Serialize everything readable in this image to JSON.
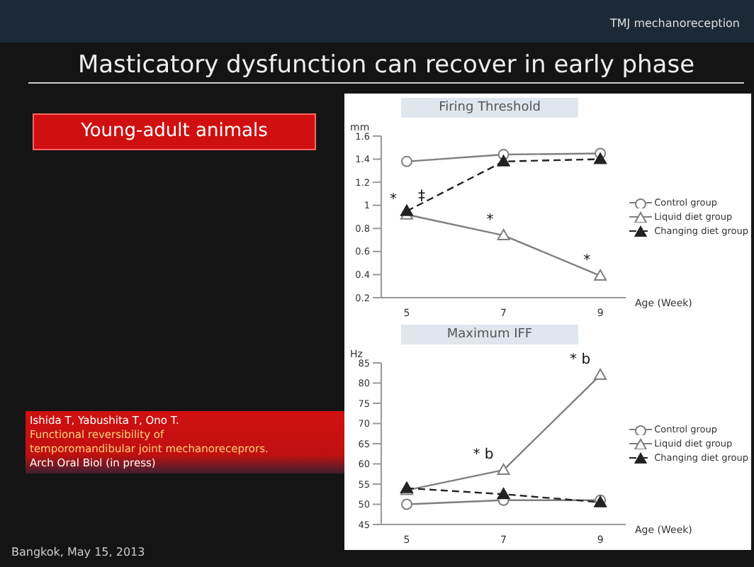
{
  "chart_data": [
    {
      "type": "line",
      "title": "Firing Threshold",
      "ylabel": "mm",
      "xlabel": "Age (Week)",
      "categories": [
        "5",
        "7",
        "9"
      ],
      "ylim": [
        0.2,
        1.6
      ],
      "yticks": [
        {
          "value": 0.2,
          "label": "0.2"
        },
        {
          "value": 0.4,
          "label": "0.4"
        },
        {
          "value": 0.6,
          "label": "0.6"
        },
        {
          "value": 0.8,
          "label": "0.8"
        },
        1,
        {
          "value": 1.2,
          "label": "1.2"
        },
        {
          "value": 1.4,
          "label": "1.4"
        },
        {
          "value": 1.6,
          "label": "1.6"
        }
      ],
      "legend": "right",
      "series": [
        {
          "name": "Control group",
          "color": "#7f7f7f",
          "marker": "circle",
          "line_style": "solid",
          "values": [
            1.38,
            1.44,
            1.45
          ]
        },
        {
          "name": "Liquid diet group",
          "color": "#7f7f7f",
          "marker": "triangle",
          "line_style": "solid",
          "values": [
            0.92,
            0.74,
            0.39
          ]
        },
        {
          "name": "Changing diet group",
          "color": "#222222",
          "marker": "triangle",
          "line_style": "dashed",
          "values": [
            0.95,
            1.38,
            1.4
          ]
        }
      ],
      "annotations": [
        "TMJ mechanoreception",
        "Masticatory dysfunction can recover in early phase",
        "Young-adult animals",
        "Ishida T, Yabushita T, Ono T.",
        "Functional reversibility of",
        "temporomandibular joint mechanoreceprors.",
        "Arch Oral Biol (in press)",
        "Bangkok, May 15, 2013",
        {
          "text": "*",
          "x": "5",
          "y": 0.92
        },
        {
          "text": "‡",
          "x": "5",
          "y": 0.95
        },
        {
          "text": "*",
          "x": "7",
          "y": 0.74
        },
        {
          "text": "*",
          "x": "9",
          "y": 0.39
        }
      ]
    },
    {
      "type": "line",
      "title": "Maximum IFF",
      "ylabel": "Hz",
      "xlabel": "Age (Week)",
      "categories": [
        "5",
        "7",
        "9"
      ],
      "ylim": [
        45,
        85
      ],
      "yticks": [
        45,
        50,
        55,
        60,
        65,
        70,
        75,
        80,
        85
      ],
      "legend": "right",
      "series": [
        {
          "name": "Control group",
          "color": "#7f7f7f",
          "marker": "circle",
          "line_style": "solid",
          "values": [
            50,
            51,
            51
          ]
        },
        {
          "name": "Liquid diet group",
          "color": "#7f7f7f",
          "marker": "triangle",
          "line_style": "solid",
          "values": [
            53.5,
            58.5,
            82
          ]
        },
        {
          "name": "Changing diet group",
          "color": "#222222",
          "marker": "triangle",
          "line_style": "dashed",
          "values": [
            54,
            52.5,
            50.5
          ]
        }
      ],
      "annotations": [
        {
          "text": "* b",
          "x": "7",
          "y": 58.5
        },
        {
          "text": "* b",
          "x": "9",
          "y": 82
        }
      ]
    }
  ]
}
